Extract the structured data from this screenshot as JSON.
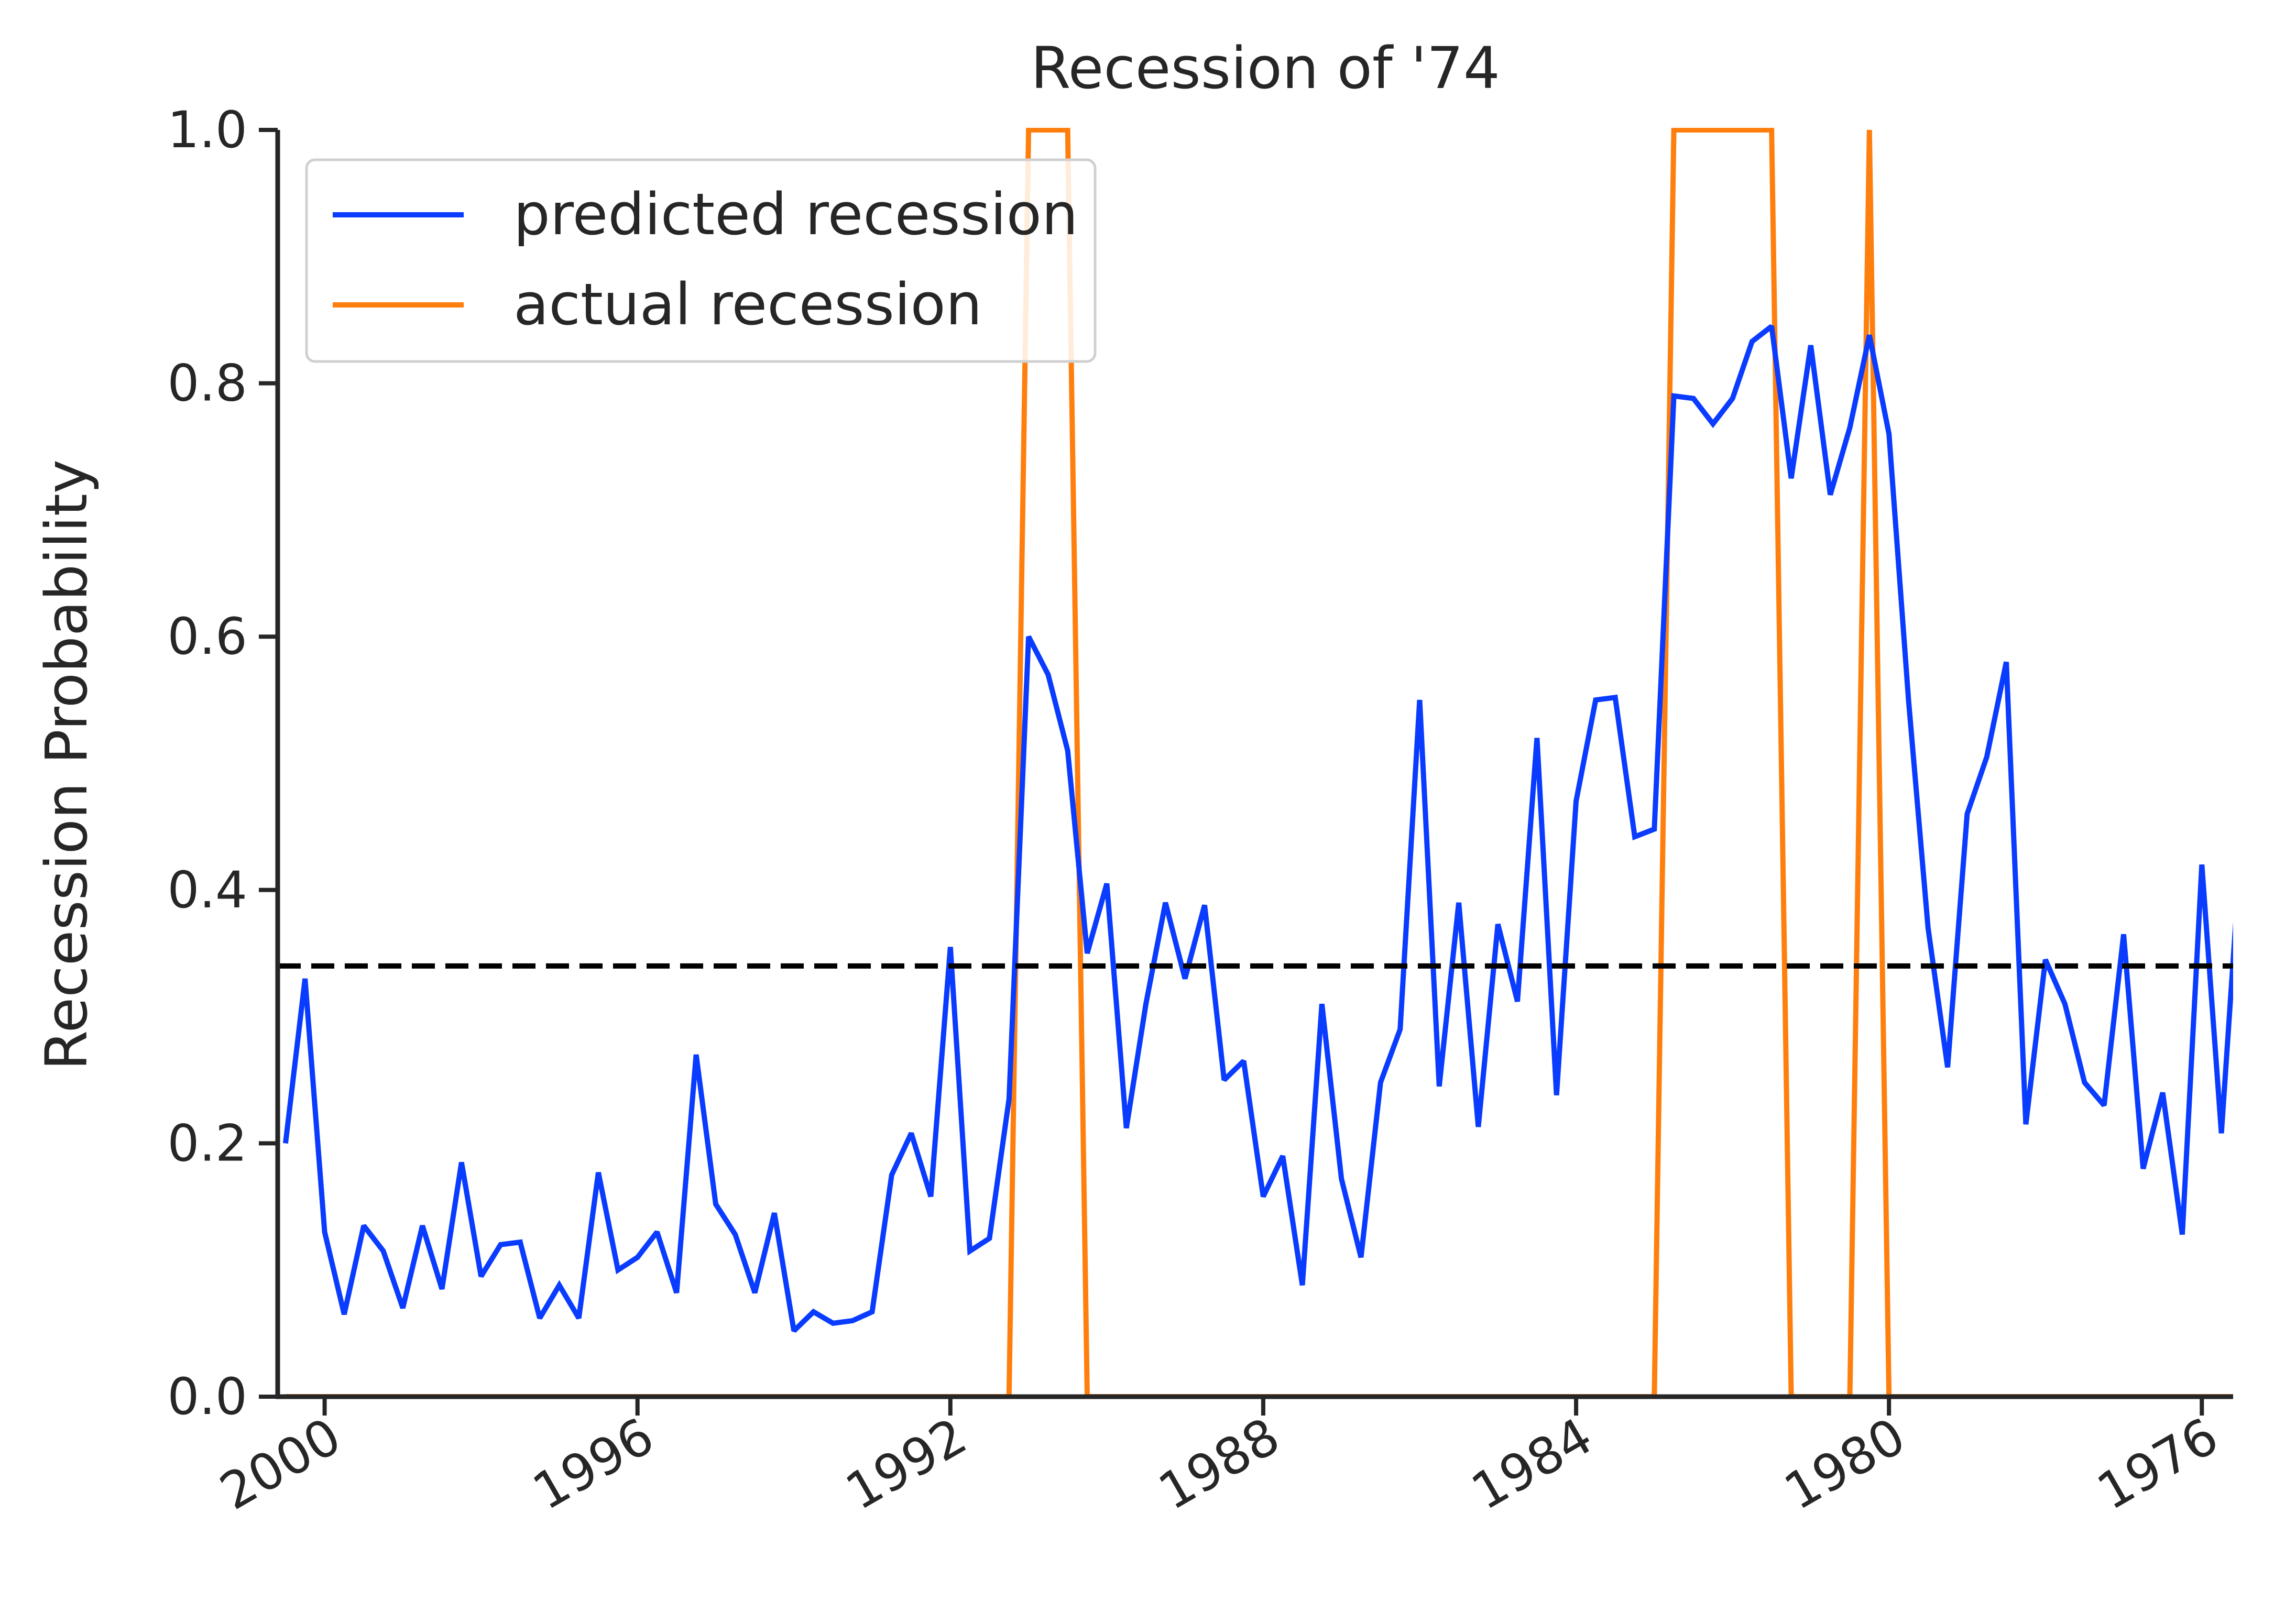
{
  "chart_data": {
    "type": "line",
    "title": "Recession of '74",
    "xlabel": "",
    "ylabel": "Recession Probability",
    "x_reversed": true,
    "xlim": [
      2000.6,
      1975.6
    ],
    "ylim": [
      0,
      1
    ],
    "yticks": [
      "0.0",
      "0.2",
      "0.4",
      "0.6",
      "0.8",
      "1.0"
    ],
    "xticks": [
      {
        "value": 2000,
        "label": "2000"
      },
      {
        "value": 1996,
        "label": "1996"
      },
      {
        "value": 1992,
        "label": "1992"
      },
      {
        "value": 1988,
        "label": "1988"
      },
      {
        "value": 1984,
        "label": "1984"
      },
      {
        "value": 1980,
        "label": "1980"
      },
      {
        "value": 1976,
        "label": "1976"
      }
    ],
    "grid": false,
    "legend_position": "upper-left",
    "threshold": 0.34,
    "x_start": 2000.5,
    "x_step": -0.25,
    "series": [
      {
        "name": "predicted recession",
        "color": "#0a3cff",
        "values": [
          0.2,
          0.33,
          0.13,
          0.065,
          0.135,
          0.115,
          0.07,
          0.135,
          0.085,
          0.185,
          0.095,
          0.12,
          0.122,
          0.062,
          0.088,
          0.062,
          0.177,
          0.1,
          0.11,
          0.13,
          0.082,
          0.27,
          0.152,
          0.128,
          0.082,
          0.145,
          0.052,
          0.067,
          0.058,
          0.06,
          0.067,
          0.175,
          0.208,
          0.158,
          0.355,
          0.115,
          0.125,
          0.235,
          0.6,
          0.57,
          0.51,
          0.35,
          0.405,
          0.212,
          0.31,
          0.39,
          0.33,
          0.388,
          0.25,
          0.265,
          0.158,
          0.19,
          0.088,
          0.31,
          0.172,
          0.11,
          0.248,
          0.29,
          0.55,
          0.245,
          0.39,
          0.213,
          0.373,
          0.312,
          0.52,
          0.238,
          0.47,
          0.55,
          0.552,
          0.442,
          0.448,
          0.79,
          0.788,
          0.768,
          0.788,
          0.833,
          0.845,
          0.725,
          0.83,
          0.712,
          0.765,
          0.838,
          0.76,
          0.55,
          0.37,
          0.26,
          0.46,
          0.505,
          0.58,
          0.215,
          0.345,
          0.31,
          0.248,
          0.23,
          0.365,
          0.18,
          0.24,
          0.128,
          0.42,
          0.208,
          0.435,
          0.418
        ]
      },
      {
        "name": "actual recession",
        "color": "#ff7f0e",
        "values": [
          0,
          0,
          0,
          0,
          0,
          0,
          0,
          0,
          0,
          0,
          0,
          0,
          0,
          0,
          0,
          0,
          0,
          0,
          0,
          0,
          0,
          0,
          0,
          0,
          0,
          0,
          0,
          0,
          0,
          0,
          0,
          0,
          0,
          0,
          0,
          0,
          0,
          0,
          1,
          1,
          1,
          0,
          0,
          0,
          0,
          0,
          0,
          0,
          0,
          0,
          0,
          0,
          0,
          0,
          0,
          0,
          0,
          0,
          0,
          0,
          0,
          0,
          0,
          0,
          0,
          0,
          0,
          0,
          0,
          0,
          0,
          1,
          1,
          1,
          1,
          1,
          1,
          0,
          0,
          0,
          0,
          1,
          0,
          0,
          0,
          0,
          0,
          0,
          0,
          0,
          0,
          0,
          0,
          0,
          0,
          0,
          0,
          0,
          0,
          0,
          0,
          0
        ]
      }
    ]
  }
}
